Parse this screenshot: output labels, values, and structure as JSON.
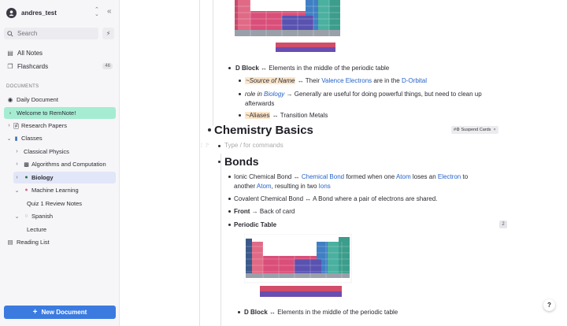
{
  "sidebar": {
    "username": "andres_test",
    "search_placeholder": "Search",
    "top_items": [
      {
        "label": "All Notes"
      },
      {
        "label": "Flashcards",
        "count": "46"
      }
    ],
    "documents_label": "DOCUMENTS",
    "daily_label": "Daily Document",
    "welcome_label": "Welcome to RemNote!",
    "research_label": "Research Papers",
    "classes_label": "Classes",
    "classical_label": "Classical Physics",
    "algorithms_label": "Algorithms and Computation",
    "biology_label": "Biology",
    "ml_label": "Machine Learning",
    "quiz_label": "Quiz 1 Review Notes",
    "spanish_label": "Spanish",
    "lecture_label": "Lecture",
    "reading_label": "Reading List",
    "new_doc_label": "New Document",
    "colors": {
      "accent": "#3b7be0",
      "highlight_green": "#a5ecd2",
      "highlight_blue": "#e1e6f8"
    }
  },
  "editor": {
    "d_block_1": {
      "title": "D Block",
      "rest": "Elements in the middle of the periodic table"
    },
    "source_line": {
      "tag": "~Source of Name",
      "pre": "Their",
      "link1": "Valence Electrons",
      "mid": "are in the",
      "link2": "D-Orbital"
    },
    "role_line": {
      "pre": "role in",
      "link": "Biology",
      "rest1": "Generally are useful for doing powerful things, but need to clean up",
      "rest2": "afterwards"
    },
    "aliases_line": {
      "tag": "~Aliases",
      "rest": "Transition Metals"
    },
    "chem_title": "Chemistry Basics",
    "suspend_chip": "#⚙ Suspend Cards",
    "type_placeholder": "Type / for commands",
    "bonds_title": "Bonds",
    "ionic": {
      "a": "Ionic Chemical Bond",
      "link1": "Chemical Bond",
      "b": "formed when one",
      "link2": "Atom",
      "c": "loses an",
      "link3": "Electron",
      "d": "to",
      "e": "another",
      "link4": "Atom",
      "f": ", resulting in two",
      "link5": "Ions"
    },
    "covalent": {
      "a": "Covalent Chemical Bond",
      "b": "A Bond where a pair of electrons are shared."
    },
    "front": {
      "a": "Front",
      "b": "Back of card"
    },
    "periodic_label": "Periodic Table",
    "periodic_count": "2",
    "d_block_2": {
      "title": "D Block",
      "rest": "Elements in the middle of the periodic table"
    },
    "help_label": "?"
  }
}
